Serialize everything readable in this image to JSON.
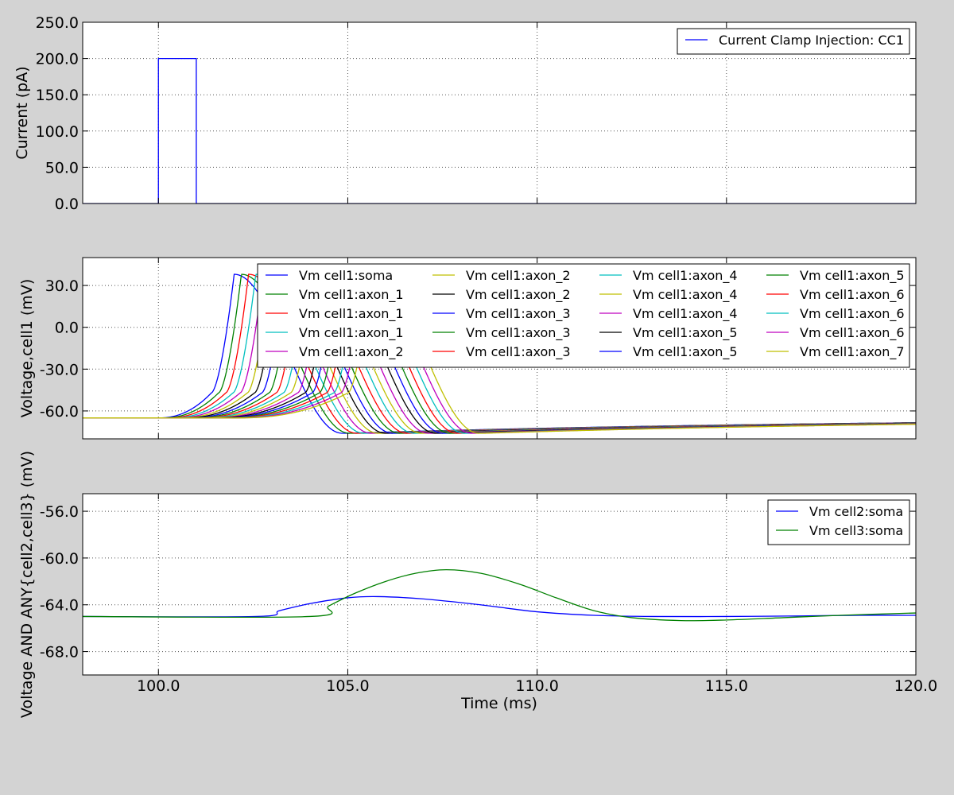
{
  "colors": {
    "figure_bg": "#d3d3d3",
    "axes_bg": "#ffffff",
    "grid": "#555555",
    "cycle": [
      "#0000ff",
      "#008000",
      "#ff0000",
      "#00bfbf",
      "#bf00bf",
      "#bfbf00",
      "#000000"
    ]
  },
  "chart_data": [
    {
      "type": "line",
      "id": "current",
      "xlabel": "",
      "ylabel": "Current (pA)",
      "xlim": [
        98,
        120
      ],
      "ylim": [
        0,
        250
      ],
      "xticks": [
        100,
        105,
        110,
        115,
        120
      ],
      "yticks": [
        0,
        50,
        100,
        150,
        200,
        250
      ],
      "ytick_labels": [
        "0.0",
        "50.0",
        "100.0",
        "150.0",
        "200.0",
        "250.0"
      ],
      "grid": true,
      "legend": {
        "placement": "top-right",
        "columns": 1
      },
      "series": [
        {
          "name": "Current Clamp Injection: CC1",
          "color": "#0000ff",
          "x": [
            98,
            100,
            100,
            101,
            101,
            120
          ],
          "y": [
            0,
            0,
            200,
            200,
            0,
            0
          ]
        }
      ]
    },
    {
      "type": "line",
      "id": "voltage_cell1",
      "xlabel": "",
      "ylabel": "Voltage,cell1 (mV)",
      "xlim": [
        98,
        120
      ],
      "ylim": [
        -80,
        50
      ],
      "xticks": [
        100,
        105,
        110,
        115,
        120
      ],
      "yticks": [
        -60,
        -30,
        0,
        30
      ],
      "ytick_labels": [
        "-60.0",
        "-30.0",
        "0.0",
        "30.0"
      ],
      "grid": true,
      "legend": {
        "placement": "top-right",
        "columns": 4
      },
      "spike": {
        "rest": -65,
        "peak": 38,
        "ahp": -76,
        "first_peak_time": 102,
        "peak_spacing": 0.19
      },
      "series": [
        {
          "name": "Vm cell1:soma",
          "color": "#0000ff"
        },
        {
          "name": "Vm cell1:axon_1",
          "color": "#008000"
        },
        {
          "name": "Vm cell1:axon_1",
          "color": "#ff0000"
        },
        {
          "name": "Vm cell1:axon_1",
          "color": "#00bfbf"
        },
        {
          "name": "Vm cell1:axon_2",
          "color": "#bf00bf"
        },
        {
          "name": "Vm cell1:axon_2",
          "color": "#bfbf00"
        },
        {
          "name": "Vm cell1:axon_2",
          "color": "#000000"
        },
        {
          "name": "Vm cell1:axon_3",
          "color": "#0000ff"
        },
        {
          "name": "Vm cell1:axon_3",
          "color": "#008000"
        },
        {
          "name": "Vm cell1:axon_3",
          "color": "#ff0000"
        },
        {
          "name": "Vm cell1:axon_4",
          "color": "#00bfbf"
        },
        {
          "name": "Vm cell1:axon_4",
          "color": "#bfbf00"
        },
        {
          "name": "Vm cell1:axon_4",
          "color": "#bf00bf"
        },
        {
          "name": "Vm cell1:axon_5",
          "color": "#000000"
        },
        {
          "name": "Vm cell1:axon_5",
          "color": "#0000ff"
        },
        {
          "name": "Vm cell1:axon_5",
          "color": "#008000"
        },
        {
          "name": "Vm cell1:axon_6",
          "color": "#ff0000"
        },
        {
          "name": "Vm cell1:axon_6",
          "color": "#00bfbf"
        },
        {
          "name": "Vm cell1:axon_6",
          "color": "#bf00bf"
        },
        {
          "name": "Vm cell1:axon_7",
          "color": "#bfbf00"
        }
      ]
    },
    {
      "type": "line",
      "id": "voltage_other",
      "xlabel": "Time (ms)",
      "ylabel": "Voltage AND ANY{cell2,cell3} (mV)",
      "xlim": [
        98,
        120
      ],
      "ylim": [
        -70,
        -54.5
      ],
      "xticks": [
        100,
        105,
        110,
        115,
        120
      ],
      "xtick_labels": [
        "100.0",
        "105.0",
        "110.0",
        "115.0",
        "120.0"
      ],
      "yticks": [
        -68,
        -64,
        -60,
        -56
      ],
      "ytick_labels": [
        "-68.0",
        "-64.0",
        "-60.0",
        "-56.0"
      ],
      "grid": true,
      "legend": {
        "placement": "top-right",
        "columns": 1
      },
      "series": [
        {
          "name": "Vm cell2:soma",
          "color": "#0000ff",
          "x": [
            98,
            102.6,
            103.2,
            104.0,
            105.0,
            105.8,
            107.0,
            108.5,
            110.0,
            111.5,
            113.0,
            115.0,
            117.0,
            118.5,
            120.0
          ],
          "y": [
            -65,
            -65,
            -64.5,
            -63.9,
            -63.4,
            -63.3,
            -63.5,
            -64.0,
            -64.6,
            -64.9,
            -65.0,
            -65.0,
            -64.95,
            -64.9,
            -64.9
          ]
        },
        {
          "name": "Vm cell3:soma",
          "color": "#008000",
          "x": [
            98,
            104.0,
            104.5,
            105.2,
            106.0,
            106.8,
            107.6,
            108.5,
            109.5,
            110.5,
            111.5,
            112.5,
            113.8,
            115.0,
            116.5,
            118.0,
            120.0
          ],
          "y": [
            -65,
            -65,
            -64.1,
            -63.0,
            -62.0,
            -61.3,
            -61.0,
            -61.3,
            -62.2,
            -63.4,
            -64.5,
            -65.1,
            -65.35,
            -65.3,
            -65.1,
            -64.9,
            -64.7
          ]
        }
      ]
    }
  ]
}
